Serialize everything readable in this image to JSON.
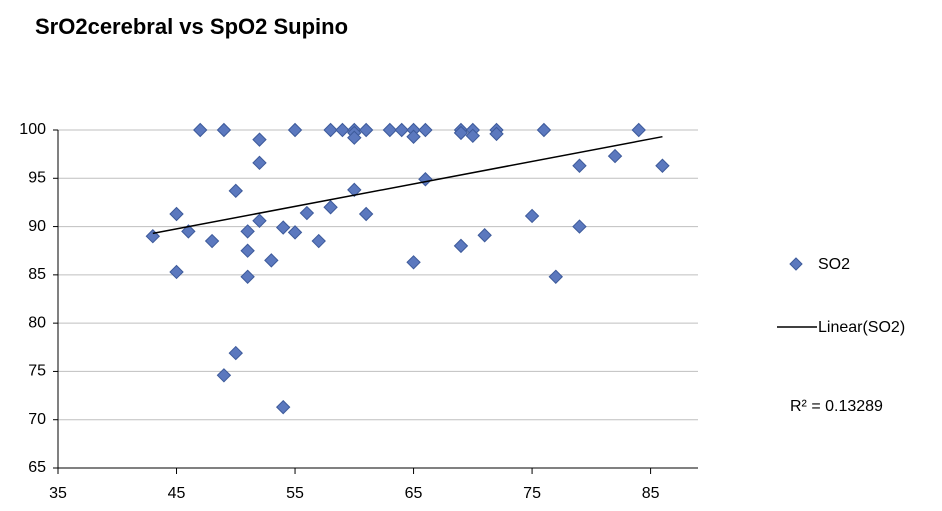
{
  "chart_data": {
    "type": "scatter",
    "title": "SrO2cerebral vs SpO2 Supino",
    "xlim": [
      35,
      89
    ],
    "xticks": [
      35,
      45,
      55,
      65,
      75,
      85
    ],
    "ylim": [
      65,
      100
    ],
    "yticks": [
      65,
      70,
      75,
      80,
      85,
      90,
      95,
      100
    ],
    "grid": true,
    "legend": "right",
    "series": [
      {
        "name": "SO2",
        "color": "#5b78be",
        "x": [
          43,
          45,
          45,
          46,
          47,
          48,
          49,
          49,
          50,
          50,
          51,
          51,
          51,
          52,
          52,
          52,
          53,
          54,
          54,
          55,
          55,
          56,
          57,
          58,
          58,
          59,
          60,
          60,
          60,
          60,
          61,
          61,
          63,
          64,
          65,
          65,
          65,
          66,
          66,
          69,
          69,
          69,
          70,
          70,
          71,
          72,
          72,
          75,
          76,
          77,
          79,
          79,
          82,
          84,
          86
        ],
        "values": [
          89,
          91.3,
          85.3,
          89.5,
          100,
          88.5,
          100,
          74.6,
          93.7,
          76.9,
          89.5,
          87.5,
          84.8,
          99,
          96.6,
          90.6,
          86.5,
          89.9,
          71.3,
          100,
          89.4,
          91.4,
          88.5,
          100,
          92,
          100,
          100,
          99.7,
          99.2,
          93.8,
          100,
          91.3,
          100,
          100,
          100,
          99.3,
          86.3,
          100,
          94.9,
          100,
          99.7,
          88,
          100,
          99.4,
          89.1,
          100,
          99.6,
          91.1,
          100,
          84.8,
          96.3,
          90,
          97.3,
          100,
          96.3
        ]
      }
    ],
    "trendline": {
      "name": "Linear(SO2)",
      "color": "#000000",
      "annotation": "R² = 0.13289"
    }
  }
}
